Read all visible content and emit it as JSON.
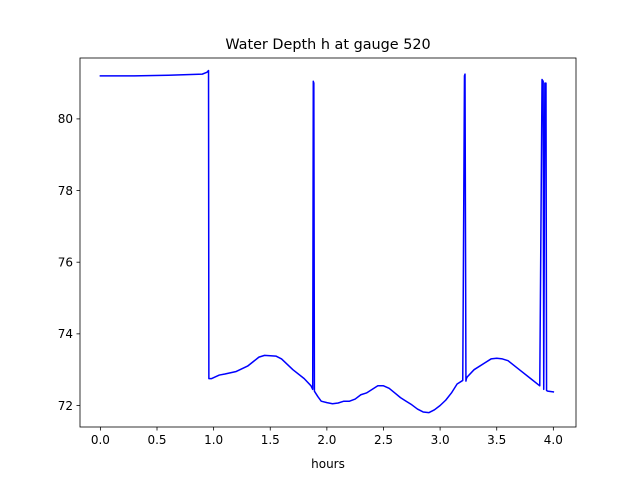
{
  "chart_data": {
    "type": "line",
    "title": "Water Depth h at gauge 520",
    "xlabel": "hours",
    "ylabel": "",
    "xlim": [
      -0.18,
      4.2
    ],
    "ylim": [
      71.4,
      81.7
    ],
    "xticks": [
      0.0,
      0.5,
      1.0,
      1.5,
      2.0,
      2.5,
      3.0,
      3.5,
      4.0
    ],
    "xtick_labels": [
      "0.0",
      "0.5",
      "1.0",
      "1.5",
      "2.0",
      "2.5",
      "3.0",
      "3.5",
      "4.0"
    ],
    "yticks": [
      72,
      74,
      76,
      78,
      80
    ],
    "ytick_labels": [
      "72",
      "74",
      "76",
      "78",
      "80"
    ],
    "grid": false,
    "legend": "none",
    "series": [
      {
        "color": "#0000ff",
        "x": [
          0.0,
          0.3,
          0.6,
          0.9,
          0.94,
          0.955,
          0.958,
          0.98,
          1.05,
          1.1,
          1.2,
          1.3,
          1.4,
          1.45,
          1.55,
          1.6,
          1.7,
          1.8,
          1.86,
          1.875,
          1.88,
          1.885,
          1.89,
          1.92,
          1.95,
          2.0,
          2.05,
          2.1,
          2.15,
          2.2,
          2.25,
          2.3,
          2.35,
          2.4,
          2.45,
          2.5,
          2.55,
          2.6,
          2.65,
          2.7,
          2.75,
          2.8,
          2.85,
          2.9,
          2.95,
          3.0,
          3.05,
          3.1,
          3.15,
          3.2,
          3.215,
          3.22,
          3.228,
          3.232,
          3.24,
          3.3,
          3.4,
          3.45,
          3.5,
          3.55,
          3.6,
          3.7,
          3.8,
          3.88,
          3.9,
          3.91,
          3.915,
          3.925,
          3.935,
          3.94,
          3.95,
          4.0
        ],
        "y": [
          81.2,
          81.2,
          81.22,
          81.25,
          81.3,
          81.35,
          72.75,
          72.75,
          72.85,
          72.88,
          72.95,
          73.1,
          73.35,
          73.4,
          73.38,
          73.3,
          73.0,
          72.75,
          72.55,
          72.45,
          81.05,
          81.0,
          72.4,
          72.25,
          72.12,
          72.08,
          72.05,
          72.07,
          72.12,
          72.12,
          72.18,
          72.3,
          72.35,
          72.45,
          72.55,
          72.55,
          72.48,
          72.35,
          72.22,
          72.12,
          72.02,
          71.9,
          71.82,
          71.8,
          71.88,
          72.0,
          72.15,
          72.35,
          72.6,
          72.7,
          81.2,
          81.25,
          72.68,
          72.75,
          72.8,
          73.0,
          73.2,
          73.3,
          73.32,
          73.3,
          73.25,
          73.0,
          72.75,
          72.55,
          81.1,
          81.05,
          72.45,
          81.0,
          81.0,
          72.42,
          72.4,
          72.38
        ]
      }
    ]
  }
}
